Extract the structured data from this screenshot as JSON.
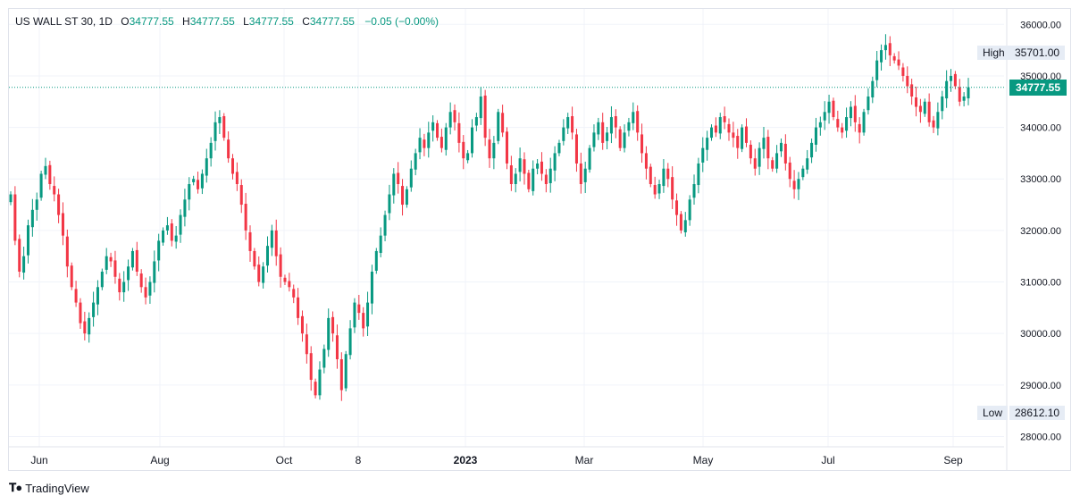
{
  "legend": {
    "symbol": "US WALL ST 30, 1D",
    "o_label": "O",
    "o_value": "34777.55",
    "h_label": "H",
    "h_value": "34777.55",
    "l_label": "L",
    "l_value": "34777.55",
    "c_label": "C",
    "c_value": "34777.55",
    "change": "−0.05 (−0.00%)"
  },
  "high_marker": {
    "label": "High",
    "value": "35701.00"
  },
  "low_marker": {
    "label": "Low",
    "value": "28612.10"
  },
  "last_price": "34777.55",
  "brand": "TradingView",
  "colors": {
    "up": "#089981",
    "down": "#f23645",
    "grid": "#f0f3fa",
    "axis_text": "#131722"
  },
  "chart_data": {
    "type": "candlestick",
    "title": "US WALL ST 30, 1D",
    "ylim": [
      27800,
      36300
    ],
    "y_ticks": [
      "36000.00",
      "35000.00",
      "34000.00",
      "33000.00",
      "32000.00",
      "31000.00",
      "30000.00",
      "29000.00",
      "28000.00"
    ],
    "x_ticks": [
      {
        "label": "Jun",
        "bold": false
      },
      {
        "label": "Aug",
        "bold": false
      },
      {
        "label": "Oct",
        "bold": false
      },
      {
        "label": "8",
        "bold": false
      },
      {
        "label": "2023",
        "bold": true
      },
      {
        "label": "Mar",
        "bold": false
      },
      {
        "label": "May",
        "bold": false
      },
      {
        "label": "Jul",
        "bold": false
      },
      {
        "label": "Sep",
        "bold": false
      }
    ],
    "grid": true,
    "series_close": [
      32700,
      31800,
      31200,
      31500,
      32100,
      32400,
      32600,
      33100,
      33250,
      32900,
      32700,
      32300,
      31900,
      31300,
      30900,
      30600,
      30200,
      30000,
      30300,
      30600,
      30900,
      31200,
      31500,
      31400,
      31100,
      30800,
      31000,
      31300,
      31600,
      31200,
      30900,
      30700,
      31000,
      31400,
      31800,
      32000,
      32100,
      31800,
      31900,
      32300,
      32600,
      32900,
      33000,
      32800,
      33100,
      33400,
      33700,
      34100,
      34200,
      33800,
      33400,
      33100,
      32900,
      32500,
      32000,
      31600,
      31300,
      31000,
      31300,
      31700,
      32000,
      31500,
      31100,
      31000,
      30900,
      30700,
      30300,
      30000,
      29600,
      29100,
      28800,
      29300,
      29700,
      30300,
      30000,
      29500,
      28900,
      29600,
      30100,
      30600,
      30400,
      30100,
      30600,
      31200,
      31600,
      31900,
      32300,
      32700,
      33100,
      32900,
      32500,
      32800,
      33200,
      33500,
      33800,
      33600,
      33900,
      34100,
      33800,
      33600,
      34000,
      34300,
      34100,
      33700,
      33400,
      33500,
      34000,
      34200,
      34600,
      33800,
      33400,
      33700,
      34300,
      33900,
      33300,
      32900,
      33100,
      33400,
      33100,
      32800,
      33200,
      33300,
      33100,
      32900,
      33200,
      33500,
      33700,
      34000,
      34200,
      33900,
      33300,
      32900,
      33200,
      33600,
      33900,
      34100,
      33700,
      33900,
      34200,
      34000,
      33600,
      33900,
      34100,
      34300,
      33900,
      33500,
      33200,
      32900,
      32700,
      32900,
      33200,
      33000,
      32600,
      32300,
      32000,
      32200,
      32600,
      32900,
      33300,
      33600,
      33800,
      34000,
      33900,
      34200,
      34100,
      33900,
      33800,
      33600,
      34000,
      33700,
      33400,
      33200,
      33600,
      33800,
      33400,
      33200,
      33500,
      33700,
      33300,
      33000,
      32800,
      33000,
      33200,
      33400,
      33700,
      34000,
      34100,
      34300,
      34500,
      34200,
      34000,
      33900,
      34200,
      34400,
      34100,
      33900,
      34300,
      34600,
      34900,
      35300,
      35500,
      35600,
      35400,
      35300,
      35200,
      35000,
      34800,
      34600,
      34400,
      34300,
      34500,
      34100,
      34000,
      34300,
      34600,
      34900,
      35000,
      34800,
      34500,
      34600,
      34778
    ]
  }
}
